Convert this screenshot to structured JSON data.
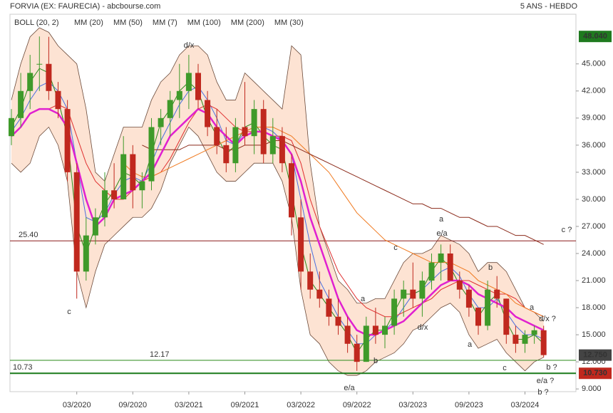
{
  "chart_data": {
    "type": "candlestick",
    "title": "FORVIA (EX: FAURECIA) - abcbourse.com",
    "subtitle": "5 ANS - HEBDO",
    "categories": [
      null,
      null,
      null,
      null,
      null,
      null,
      null,
      "03/2020",
      null,
      null,
      null,
      null,
      null,
      "09/2020",
      null,
      null,
      null,
      null,
      null,
      "03/2021",
      null,
      null,
      null,
      null,
      null,
      "09/2021",
      null,
      null,
      null,
      null,
      null,
      "03/2022",
      null,
      null,
      null,
      null,
      null,
      "09/2022",
      null,
      null,
      null,
      null,
      null,
      "03/2023",
      null,
      null,
      null,
      null,
      null,
      "09/2023",
      null,
      null,
      null,
      null,
      null,
      "03/2024",
      null,
      null
    ],
    "up_color": "#3f9a2a",
    "down_color": "#c0281e",
    "open": [
      37,
      39,
      42,
      45,
      45,
      42,
      40,
      33,
      22,
      26,
      28,
      31,
      30,
      35,
      31,
      32,
      38,
      39,
      41,
      42,
      44,
      41,
      38,
      36,
      34,
      38,
      37,
      40,
      35,
      37,
      34,
      28,
      22,
      20,
      19,
      17,
      16,
      14,
      12,
      16,
      15,
      16,
      19,
      20,
      19,
      21,
      23,
      24,
      21,
      20,
      18,
      16,
      20,
      19,
      15,
      14,
      15,
      15.5
    ],
    "high": [
      40,
      44,
      46,
      48.04,
      48,
      43,
      41,
      34,
      28,
      29,
      33,
      34,
      37,
      36,
      33,
      39,
      40,
      42,
      45,
      46,
      45,
      42,
      40,
      38,
      39,
      43,
      41,
      41,
      39,
      38,
      35,
      30,
      24,
      22,
      20,
      19,
      17,
      15,
      17,
      18,
      17,
      20,
      21,
      23,
      22,
      24,
      25,
      25,
      22,
      20.5,
      18,
      21,
      21.5,
      19,
      16,
      15.5,
      16,
      16
    ],
    "low": [
      36,
      38,
      40,
      42,
      41,
      39,
      32,
      19,
      21,
      25,
      27,
      29,
      30,
      29,
      29,
      31,
      36,
      37,
      39,
      40,
      40,
      37,
      35,
      33,
      33,
      36,
      35,
      34,
      34,
      33,
      26,
      20,
      19,
      18,
      16,
      15,
      13,
      11,
      12,
      14,
      13.5,
      15,
      17,
      18,
      17,
      20,
      21,
      21,
      19,
      17,
      15,
      15.5,
      18,
      14,
      13,
      13,
      14,
      12.5
    ],
    "close": [
      39,
      42,
      44,
      45,
      42,
      40,
      33,
      22,
      26,
      28,
      31,
      30,
      35,
      31,
      32,
      38,
      39,
      41,
      42,
      44,
      41,
      38,
      36,
      34,
      38,
      37,
      40,
      35,
      37,
      34,
      28,
      22,
      20,
      19,
      17,
      16,
      14,
      12,
      16,
      15,
      16,
      19,
      20,
      19,
      21,
      23,
      24,
      21,
      20,
      18,
      16,
      20,
      19,
      15,
      14,
      15,
      15.5,
      12.75
    ],
    "bollinger": {
      "name": "BOLL (20, 2)",
      "fill": "#fde3d3",
      "color": "#6b4a3a",
      "upper": [
        41,
        45,
        48,
        49,
        48.5,
        47,
        46,
        45,
        40,
        33,
        32,
        35,
        38,
        38,
        38,
        41,
        43,
        44,
        46,
        47,
        47,
        46,
        43,
        41,
        41,
        44,
        43,
        42,
        41,
        40,
        47,
        46,
        34,
        27,
        24,
        21,
        20,
        18.5,
        18.5,
        19,
        19,
        21,
        23,
        24,
        24,
        24.5,
        26,
        25.5,
        25,
        24,
        22,
        23,
        23,
        22,
        20,
        18,
        17.5,
        16.5
      ],
      "lower": [
        34,
        33,
        34,
        37,
        38,
        36,
        32,
        22,
        18,
        22,
        25,
        26,
        27,
        28,
        28,
        29,
        31,
        34,
        36,
        38,
        37,
        35,
        33,
        32,
        32,
        33,
        34,
        34,
        34,
        32,
        28,
        20,
        15,
        14,
        12,
        11,
        10.5,
        10.5,
        11,
        12,
        12.5,
        13,
        14,
        15.5,
        16,
        17,
        18,
        18.5,
        17.5,
        15,
        13.5,
        14,
        14.5,
        13,
        12,
        11,
        12,
        12.5
      ]
    },
    "series": [
      {
        "name": "MM (20)",
        "color": "#4a6fe0",
        "width": 1,
        "values": [
          37.5,
          39,
          41,
          42.5,
          43,
          42,
          40,
          34,
          28,
          27.5,
          28.5,
          30.5,
          32,
          32.5,
          32,
          34,
          36.5,
          38.5,
          40.5,
          42,
          42.5,
          41,
          39,
          36.5,
          36,
          37.5,
          38,
          38,
          37.5,
          36.5,
          35,
          30,
          25,
          21,
          19,
          17,
          15.5,
          14,
          14,
          15,
          15.5,
          16.5,
          18,
          19.5,
          20,
          21,
          22,
          22.5,
          21.5,
          19.5,
          18,
          18,
          19,
          17.5,
          16,
          15,
          15,
          14.5
        ]
      },
      {
        "name": "MM (50)",
        "color": "#e03030",
        "width": 1,
        "values": [
          null,
          null,
          null,
          null,
          40,
          40.5,
          40,
          37,
          34,
          32,
          31,
          30,
          30,
          31,
          32,
          32.5,
          33,
          34.5,
          36.5,
          38.5,
          40,
          40.5,
          40,
          39,
          38,
          37.5,
          37.5,
          37.5,
          37,
          37,
          36.5,
          34,
          30,
          27,
          24.5,
          22,
          20.5,
          19,
          18,
          17.5,
          17,
          17,
          17.5,
          18,
          18.5,
          19,
          20,
          20.5,
          21,
          21,
          20.5,
          20,
          19.5,
          19.5,
          19,
          18,
          17.5,
          17
        ]
      },
      {
        "name": "MM (7)",
        "color": "#2a8a1a",
        "width": 1,
        "values": [
          38,
          40,
          43,
          44.5,
          44,
          41,
          37,
          27,
          24,
          27,
          29.5,
          31,
          33,
          32.5,
          31.5,
          35,
          38.5,
          40,
          42,
          43,
          42,
          39,
          37,
          35,
          36,
          38,
          38.5,
          37,
          36,
          35.5,
          31,
          25,
          21,
          19.5,
          18,
          16.5,
          15,
          13,
          14.5,
          15.5,
          15.5,
          17.5,
          19.5,
          19.5,
          20,
          22,
          23.5,
          22.5,
          20.5,
          19,
          17,
          18.5,
          19.5,
          16.5,
          14.5,
          14.5,
          15,
          14
        ]
      },
      {
        "name": "MM (100)",
        "color": "#f07a20",
        "width": 1,
        "values": [
          null,
          null,
          null,
          null,
          null,
          null,
          null,
          null,
          null,
          null,
          null,
          null,
          34,
          33,
          32.5,
          32.5,
          33,
          33.5,
          34,
          34.5,
          35,
          35.5,
          36,
          36.5,
          37,
          37.5,
          38,
          38,
          38,
          37.5,
          37,
          36,
          35,
          34,
          33,
          31.5,
          30,
          28.5,
          27.5,
          26.5,
          25.5,
          25,
          24.5,
          24,
          23.5,
          23,
          23,
          23,
          22.5,
          22,
          21,
          20.5,
          20,
          19.5,
          18.5,
          18,
          17.5,
          17
        ]
      },
      {
        "name": "MM (200)",
        "color": "#8b2a1a",
        "width": 1,
        "values": [
          null,
          null,
          null,
          null,
          null,
          null,
          null,
          null,
          null,
          null,
          null,
          null,
          null,
          null,
          36,
          35.5,
          35.5,
          35.5,
          35.5,
          36,
          36,
          36,
          36,
          35.5,
          35.5,
          36,
          36,
          36,
          36.5,
          36.5,
          36,
          35.5,
          35,
          34.5,
          34,
          33.5,
          33,
          32.5,
          32,
          31.5,
          31,
          30.5,
          30,
          29.5,
          29.5,
          29,
          29,
          28.5,
          28,
          28,
          27.5,
          27,
          27,
          26.5,
          26,
          26,
          25.5,
          25
        ]
      },
      {
        "name": "MM (30)",
        "color": "#e020d0",
        "width": 2.5,
        "values": [
          37,
          38,
          39.5,
          40,
          40,
          39.5,
          38,
          34,
          30,
          27,
          28,
          30,
          30.5,
          31,
          32,
          33,
          35,
          37,
          38,
          39,
          40,
          39.5,
          38,
          37,
          36,
          37,
          37.5,
          37.5,
          37,
          36.5,
          35,
          32,
          28,
          25,
          22,
          19,
          17,
          15.5,
          15,
          15,
          15.5,
          16,
          16.5,
          17.5,
          18.5,
          19.5,
          20.5,
          21,
          21,
          20.5,
          19.5,
          19,
          18.5,
          18,
          17,
          16.5,
          16,
          15.5
        ]
      }
    ],
    "levels": [
      {
        "value": 25.4,
        "label": "25.40",
        "color": "#8b1a1a",
        "width": 1
      },
      {
        "value": 12.17,
        "label": "12.17",
        "color": "#2a8a1a",
        "width": 1
      },
      {
        "value": 10.73,
        "label": "10.73",
        "color": "#1a7a1a",
        "width": 2
      }
    ],
    "badges": [
      {
        "value": 48.04,
        "label": "48.040",
        "color": "#1f7a1f"
      },
      {
        "value": 12.75,
        "label": "12.750",
        "color": "#444"
      },
      {
        "value": 10.73,
        "label": "10.730",
        "color": "#c0281e"
      }
    ],
    "annotations": [
      "c",
      "d/x",
      "e/a",
      "a",
      "e/a",
      "c ?",
      "c",
      "b",
      "d/x",
      "a",
      "b",
      "a",
      "c",
      "b ?",
      "a",
      "d/x ?",
      "e/a ?",
      "b ?"
    ],
    "ylim": [
      8.7,
      50.5
    ],
    "yticks": [
      {
        "value": 9,
        "label": "9.000"
      },
      {
        "value": 12,
        "label": "12.000"
      },
      {
        "value": 15,
        "label": "15.000"
      },
      {
        "value": 18,
        "label": "18.000"
      },
      {
        "value": 21,
        "label": "21.000"
      },
      {
        "value": 24,
        "label": "24.000"
      },
      {
        "value": 27,
        "label": "27.000"
      },
      {
        "value": 30,
        "label": "30.000"
      },
      {
        "value": 33,
        "label": "33.000"
      },
      {
        "value": 36,
        "label": "36.000"
      },
      {
        "value": 39,
        "label": "39.000"
      },
      {
        "value": 42,
        "label": "42.000"
      },
      {
        "value": 45,
        "label": "45.000"
      }
    ]
  }
}
